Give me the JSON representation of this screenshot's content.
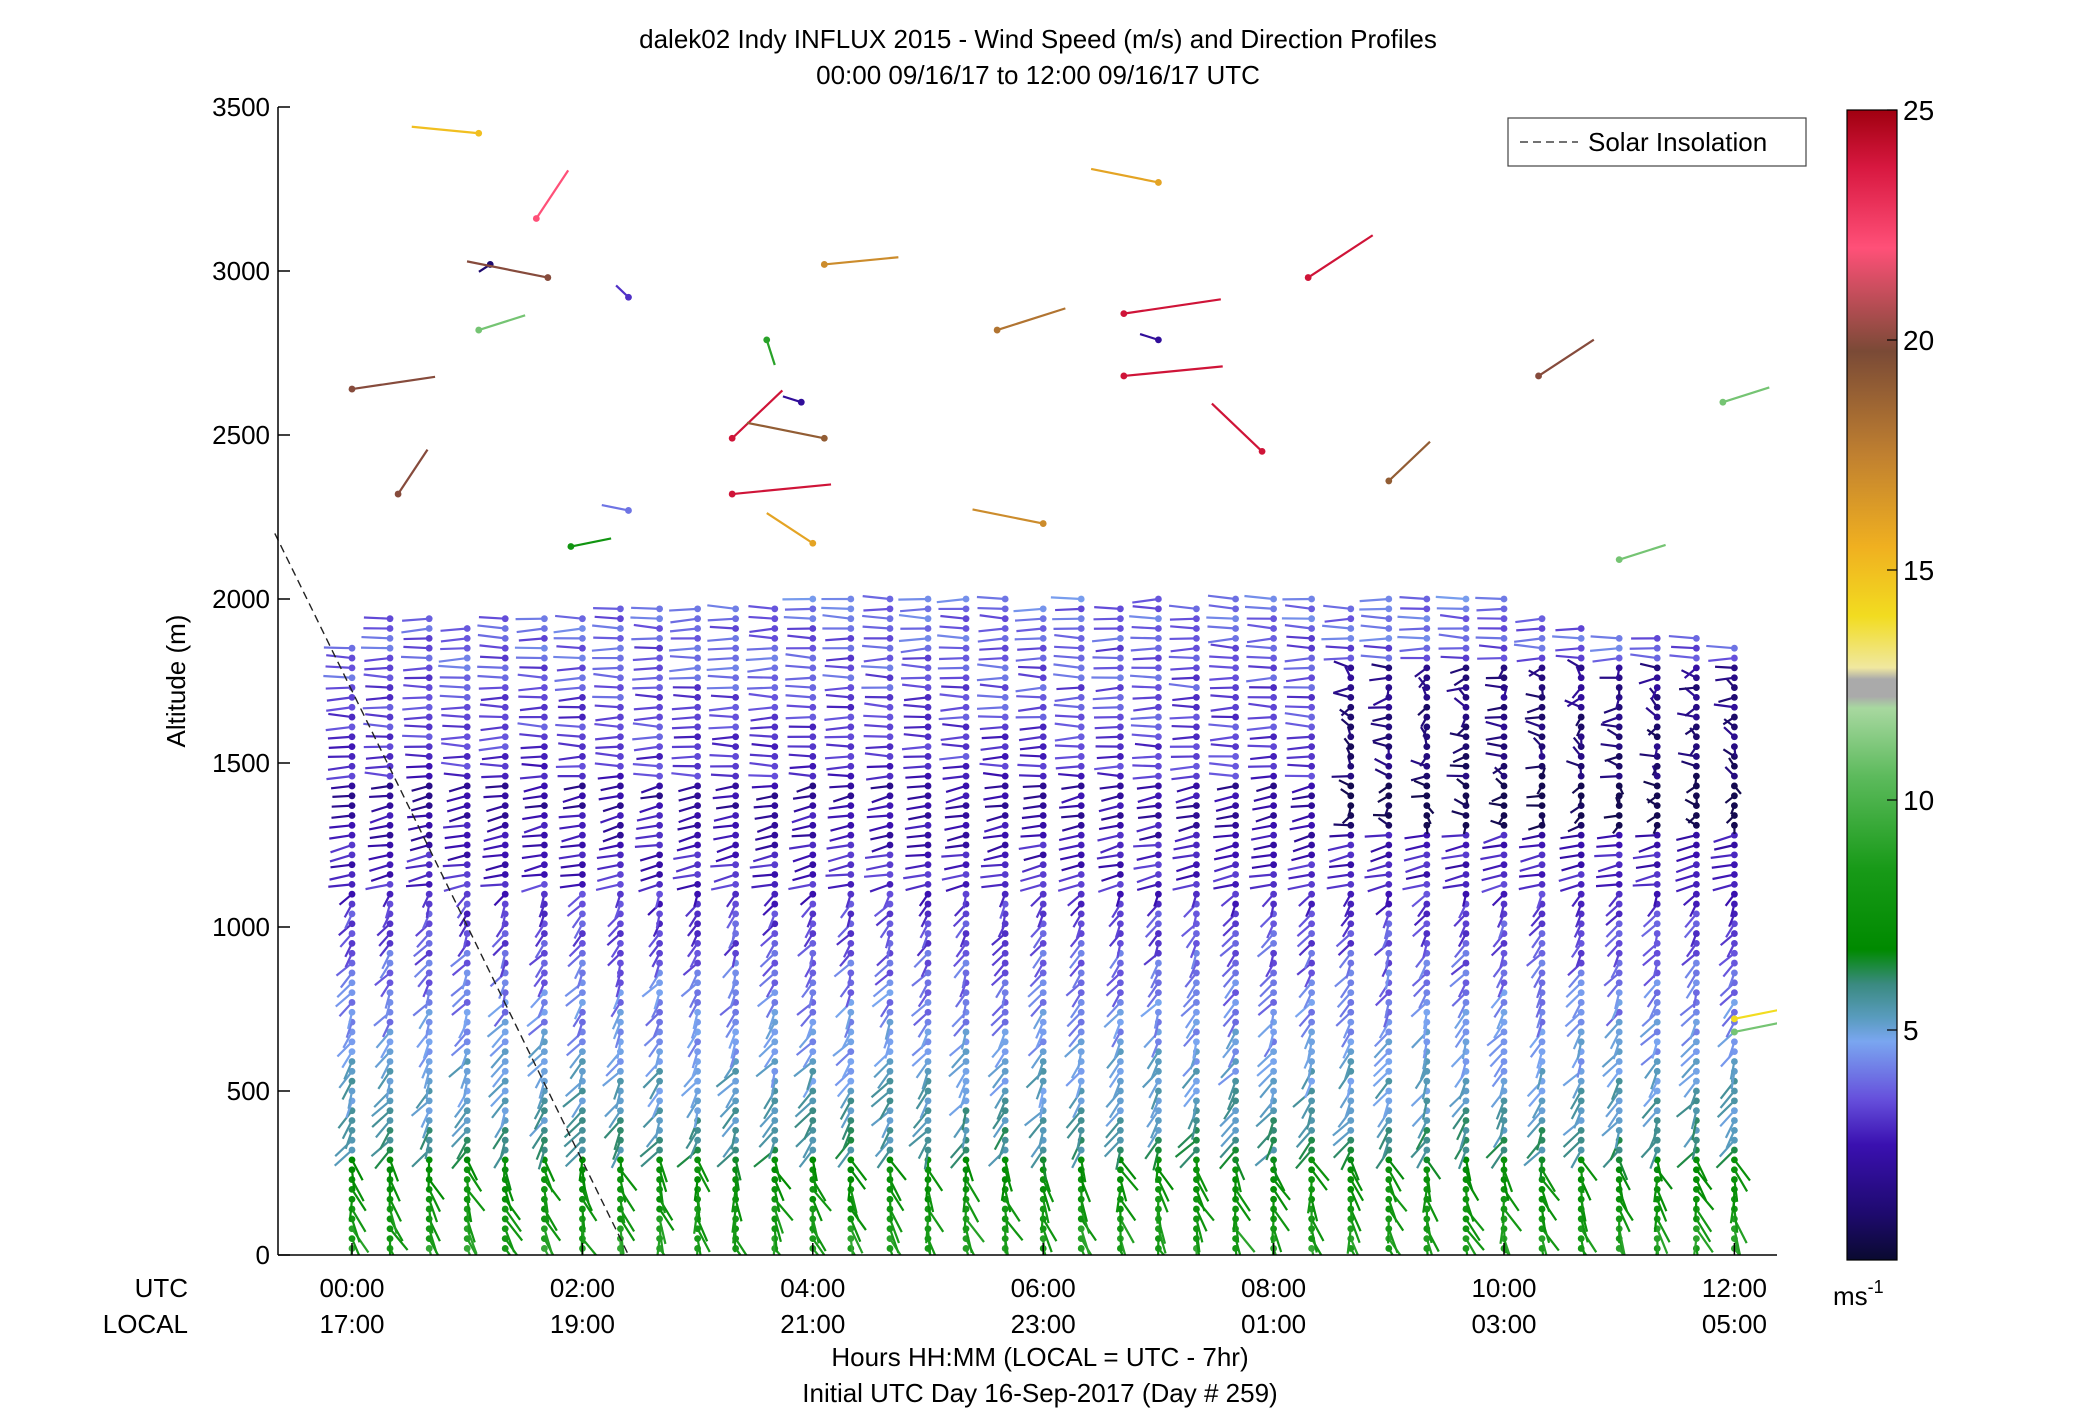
{
  "chart_data": {
    "type": "scatter",
    "title": "dalek02 Indy INFLUX 2015 - Wind Speed (m/s) and Direction Profiles",
    "subtitle": "00:00 09/16/17 to 12:00 09/16/17  UTC",
    "ylabel": "Altitude (m)",
    "xlabel": "Hours HH:MM  (LOCAL = UTC - 7hr)",
    "xlabel2": "Initial UTC Day 16-Sep-2017 (Day # 259)",
    "ylim": [
      0,
      3500
    ],
    "xlim_hours": [
      -0.67,
      12.33
    ],
    "y_ticks": [
      0,
      500,
      1000,
      1500,
      2000,
      2500,
      3000,
      3500
    ],
    "x_tick_hours": [
      0,
      2,
      4,
      6,
      8,
      10,
      12
    ],
    "x_row_labels": {
      "utc": "UTC",
      "local": "LOCAL"
    },
    "x_ticks_utc": [
      "00:00",
      "02:00",
      "04:00",
      "06:00",
      "08:00",
      "10:00",
      "12:00"
    ],
    "x_ticks_local": [
      "17:00",
      "19:00",
      "21:00",
      "23:00",
      "01:00",
      "03:00",
      "05:00"
    ],
    "legend": {
      "label": "Solar Insolation",
      "position": "top-right"
    },
    "solar_insolation_line": {
      "x_hours": [
        -0.67,
        2.4
      ],
      "altitude_m": [
        2200,
        0
      ]
    },
    "colorbar": {
      "min": 0,
      "max": 25,
      "ticks": [
        5,
        10,
        15,
        20,
        25
      ],
      "unit_label": "ms",
      "unit_sup": "-1"
    },
    "profile_times_hours": [
      0.0,
      0.33,
      0.67,
      1.0,
      1.33,
      1.67,
      2.0,
      2.33,
      2.67,
      3.0,
      3.33,
      3.67,
      4.0,
      4.33,
      4.67,
      5.0,
      5.33,
      5.67,
      6.0,
      6.33,
      6.67,
      7.0,
      7.33,
      7.67,
      8.0,
      8.33,
      8.67,
      9.0,
      9.33,
      9.67,
      10.0,
      10.33,
      10.67,
      11.0,
      11.33,
      11.67,
      12.0
    ],
    "profile_top_m": [
      1850,
      1960,
      1940,
      1920,
      1940,
      1950,
      1960,
      1980,
      1970,
      1980,
      1990,
      1990,
      2000,
      2000,
      2010,
      2000,
      2000,
      2000,
      1990,
      2000,
      1990,
      2000,
      1990,
      2000,
      2000,
      2010,
      1990,
      2000,
      2000,
      2010,
      2000,
      1950,
      1930,
      1900,
      1890,
      1880,
      1870
    ],
    "levels_step_m": 30,
    "wind_regimes": [
      {
        "altitude_m": [
          0,
          300
        ],
        "speed_ms": [
          9,
          7
        ],
        "direction_deg": 170
      },
      {
        "altitude_m": [
          300,
          1100
        ],
        "speed_ms": [
          6,
          3
        ],
        "direction_deg": 200
      },
      {
        "altitude_m": [
          1100,
          1450
        ],
        "speed_ms": [
          3,
          2
        ],
        "direction_deg": 250
      },
      {
        "altitude_m": [
          1450,
          2000
        ],
        "speed_ms": [
          3,
          4
        ],
        "direction_deg": 270
      }
    ],
    "isolated_barbs": [
      {
        "t": 0.0,
        "alt": 2640,
        "spd": 20,
        "dir": 75
      },
      {
        "t": 0.4,
        "alt": 2320,
        "spd": 20,
        "dir": 20
      },
      {
        "t": 1.2,
        "alt": 3020,
        "spd": 1,
        "dir": 220
      },
      {
        "t": 1.1,
        "alt": 2820,
        "spd": 11,
        "dir": 60
      },
      {
        "t": 1.1,
        "alt": 3420,
        "spd": 15,
        "dir": 280
      },
      {
        "t": 1.6,
        "alt": 3160,
        "spd": 22,
        "dir": 20
      },
      {
        "t": 1.7,
        "alt": 2980,
        "spd": 20,
        "dir": 290
      },
      {
        "t": 1.9,
        "alt": 2160,
        "spd": 8,
        "dir": 70
      },
      {
        "t": 2.4,
        "alt": 2920,
        "spd": 3,
        "dir": 330
      },
      {
        "t": 2.4,
        "alt": 2270,
        "spd": 4,
        "dir": 290
      },
      {
        "t": 3.3,
        "alt": 2490,
        "spd": 24,
        "dir": 30
      },
      {
        "t": 3.3,
        "alt": 2320,
        "spd": 24,
        "dir": 80
      },
      {
        "t": 3.9,
        "alt": 2600,
        "spd": 2,
        "dir": 300
      },
      {
        "t": 4.1,
        "alt": 3020,
        "spd": 17,
        "dir": 80
      },
      {
        "t": 4.1,
        "alt": 2490,
        "spd": 19,
        "dir": 290
      },
      {
        "t": 4.0,
        "alt": 2170,
        "spd": 16,
        "dir": 320
      },
      {
        "t": 3.6,
        "alt": 2790,
        "spd": 9,
        "dir": 170
      },
      {
        "t": 5.6,
        "alt": 2820,
        "spd": 18,
        "dir": 60
      },
      {
        "t": 6.0,
        "alt": 2230,
        "spd": 17,
        "dir": 290
      },
      {
        "t": 6.7,
        "alt": 2870,
        "spd": 24,
        "dir": 75
      },
      {
        "t": 6.7,
        "alt": 2680,
        "spd": 24,
        "dir": 80
      },
      {
        "t": 7.0,
        "alt": 2790,
        "spd": 2,
        "dir": 300
      },
      {
        "t": 7.0,
        "alt": 3270,
        "spd": 16,
        "dir": 290
      },
      {
        "t": 7.9,
        "alt": 2450,
        "spd": 24,
        "dir": 330
      },
      {
        "t": 8.3,
        "alt": 2980,
        "spd": 24,
        "dir": 40
      },
      {
        "t": 9.0,
        "alt": 2360,
        "spd": 19,
        "dir": 30
      },
      {
        "t": 10.3,
        "alt": 2680,
        "spd": 20,
        "dir": 40
      },
      {
        "t": 11.0,
        "alt": 2120,
        "spd": 11,
        "dir": 60
      },
      {
        "t": 11.9,
        "alt": 2600,
        "spd": 11,
        "dir": 60
      },
      {
        "t": 12.0,
        "alt": 720,
        "spd": 14,
        "dir": 70
      },
      {
        "t": 12.0,
        "alt": 680,
        "spd": 11,
        "dir": 70
      }
    ]
  }
}
